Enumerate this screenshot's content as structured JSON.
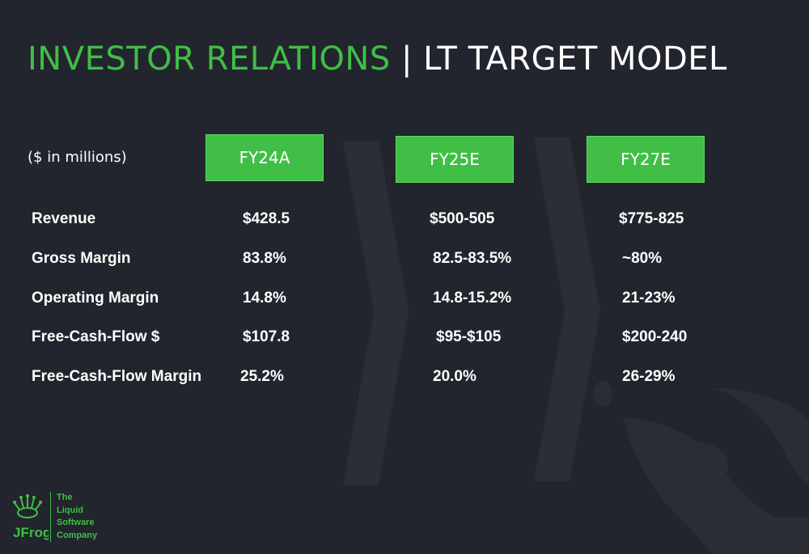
{
  "title": {
    "highlight": "INVESTOR RELATIONS",
    "separator": "|",
    "rest": "LT TARGET MODEL"
  },
  "units_note": "($ in millions)",
  "columns": [
    "FY24A",
    "FY25E",
    "FY27E"
  ],
  "rows": [
    {
      "label": "Revenue",
      "values": [
        "$428.5",
        "$500-505",
        "$775-825"
      ]
    },
    {
      "label": "Gross Margin",
      "values": [
        "83.8%",
        "82.5-83.5%",
        "~80%"
      ]
    },
    {
      "label": "Operating Margin",
      "values": [
        "14.8%",
        "14.8-15.2%",
        "21-23%"
      ]
    },
    {
      "label": "Free-Cash-Flow $",
      "values": [
        "$107.8",
        "$95-$105",
        "$200-240"
      ]
    },
    {
      "label": "Free-Cash-Flow Margin",
      "values": [
        "25.2%",
        "20.0%",
        "26-29%"
      ]
    }
  ],
  "logo": {
    "wordmark": "JFrog",
    "tagline": [
      "The",
      "Liquid",
      "Software",
      "Company"
    ]
  },
  "colors": {
    "accent": "#40be46",
    "background": "#22252d",
    "chevron": "#2b2e36"
  }
}
